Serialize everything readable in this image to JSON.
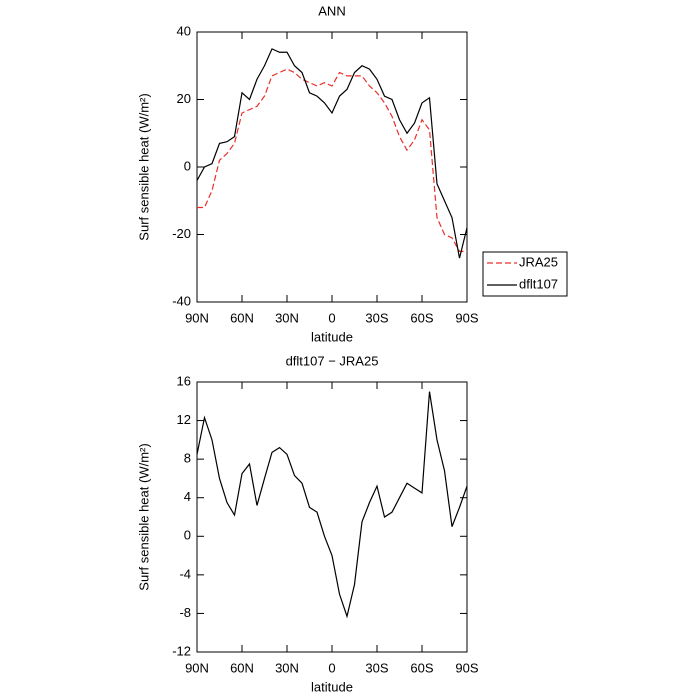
{
  "chart_data": [
    {
      "type": "line",
      "title": "ANN",
      "xlabel": "latitude",
      "ylabel": "Surf sensible heat (W/m²)",
      "x": [
        90,
        85,
        80,
        75,
        70,
        65,
        60,
        55,
        50,
        45,
        40,
        35,
        30,
        25,
        20,
        15,
        10,
        5,
        0,
        -5,
        -10,
        -15,
        -20,
        -25,
        -30,
        -35,
        -40,
        -45,
        -50,
        -55,
        -60,
        -65,
        -70,
        -75,
        -80,
        -85,
        -90
      ],
      "series": [
        {
          "name": "JRA25",
          "color": "#e8302a",
          "linestyle": "dashed",
          "values": [
            -12,
            -12,
            -7,
            2,
            4,
            7,
            16,
            17,
            18,
            21,
            27,
            28,
            29,
            28,
            26,
            25,
            24,
            25,
            24,
            28,
            27,
            27,
            27,
            24,
            22,
            19,
            15,
            9,
            5,
            8,
            14,
            11,
            -15,
            -20,
            -21,
            -25,
            -25
          ]
        },
        {
          "name": "dflt107",
          "color": "#000000",
          "linestyle": "solid",
          "values": [
            -4,
            0,
            1,
            7,
            7.5,
            9,
            22,
            20,
            26,
            30,
            35,
            34,
            34,
            30,
            28,
            22,
            21,
            19,
            16,
            21,
            23,
            28,
            30,
            29,
            26,
            21,
            20,
            14,
            10,
            13,
            19,
            20.5,
            -5,
            -10,
            -15,
            -27,
            -18
          ]
        }
      ],
      "xlim": [
        90,
        -90
      ],
      "xticks": [
        {
          "value": 90,
          "label": "90N"
        },
        {
          "value": 60,
          "label": "60N"
        },
        {
          "value": 30,
          "label": "30N"
        },
        0,
        {
          "value": -30,
          "label": "30S"
        },
        {
          "value": -60,
          "label": "60S"
        },
        {
          "value": -90,
          "label": "90S"
        }
      ],
      "ylim": [
        -40,
        40
      ],
      "yticks": [
        -40,
        -20,
        0,
        20,
        40
      ],
      "legend": "outside-right"
    },
    {
      "type": "line",
      "title": "dflt107 − JRA25",
      "xlabel": "latitude",
      "ylabel": "Surf sensible heat (W/m²)",
      "x": [
        90,
        85,
        80,
        75,
        70,
        65,
        60,
        55,
        50,
        45,
        40,
        35,
        30,
        25,
        20,
        15,
        10,
        5,
        0,
        -5,
        -10,
        -15,
        -20,
        -25,
        -30,
        -35,
        -40,
        -45,
        -50,
        -55,
        -60,
        -65,
        -70,
        -75,
        -80,
        -85,
        -90
      ],
      "series": [
        {
          "color": "#000000",
          "linestyle": "solid",
          "values": [
            8.5,
            12.3,
            10,
            6,
            3.5,
            2.2,
            6.5,
            7.5,
            3.2,
            6,
            8.7,
            9.2,
            8.5,
            6.3,
            5.5,
            3,
            2.5,
            0,
            -2,
            -6,
            -8.3,
            -5,
            1.5,
            3.5,
            5.2,
            2,
            2.5,
            4,
            5.5,
            5,
            4.5,
            15,
            10,
            6.8,
            1,
            3,
            5.2
          ]
        }
      ],
      "xlim": [
        90,
        -90
      ],
      "xticks": [
        {
          "value": 90,
          "label": "90N"
        },
        {
          "value": 60,
          "label": "60N"
        },
        {
          "value": 30,
          "label": "30N"
        },
        0,
        {
          "value": -30,
          "label": "30S"
        },
        {
          "value": -60,
          "label": "60S"
        },
        {
          "value": -90,
          "label": "90S"
        }
      ],
      "ylim": [
        -12,
        16
      ],
      "yticks": [
        -12,
        -8,
        -4,
        0,
        4,
        8,
        12,
        16
      ]
    }
  ]
}
